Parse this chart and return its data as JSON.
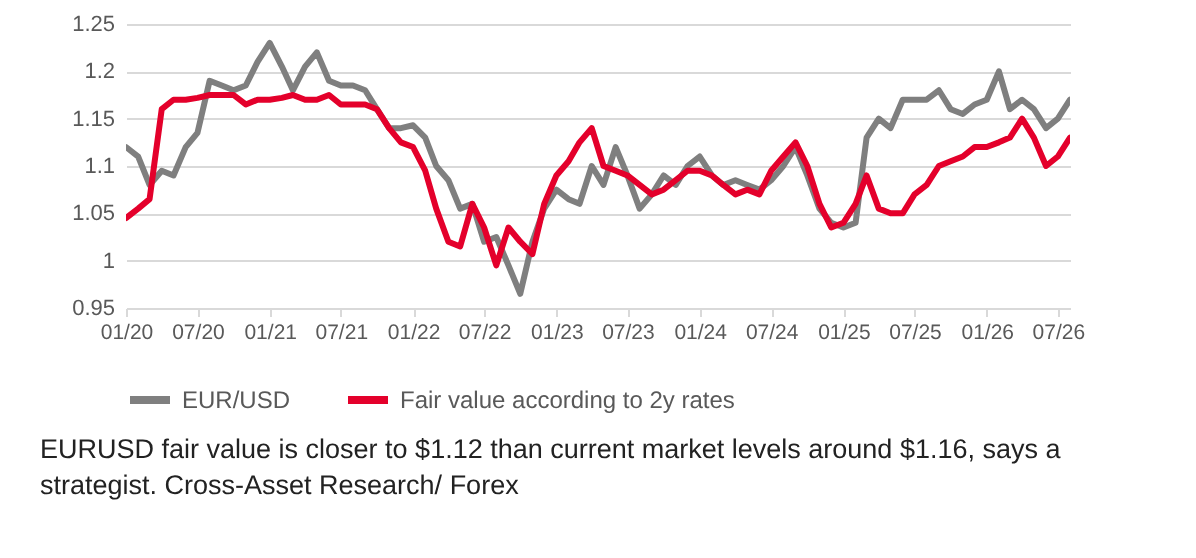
{
  "chart_data": {
    "type": "line",
    "x": [
      "2020-01",
      "2020-02",
      "2020-03",
      "2020-04",
      "2020-05",
      "2020-06",
      "2020-07",
      "2020-08",
      "2020-09",
      "2020-10",
      "2020-11",
      "2020-12",
      "2021-01",
      "2021-02",
      "2021-03",
      "2021-04",
      "2021-05",
      "2021-06",
      "2021-07",
      "2021-08",
      "2021-09",
      "2021-10",
      "2021-11",
      "2021-12",
      "2022-01",
      "2022-02",
      "2022-03",
      "2022-04",
      "2022-05",
      "2022-06",
      "2022-07",
      "2022-08",
      "2022-09",
      "2022-10",
      "2022-11",
      "2022-12",
      "2023-01",
      "2023-02",
      "2023-03",
      "2023-04",
      "2023-05",
      "2023-06",
      "2023-07",
      "2023-08",
      "2023-09",
      "2023-10",
      "2023-11",
      "2023-12",
      "2024-01",
      "2024-02",
      "2024-03",
      "2024-04",
      "2024-05",
      "2024-06",
      "2024-07",
      "2024-08",
      "2024-09",
      "2024-10",
      "2024-11",
      "2024-12",
      "2025-01",
      "2025-02",
      "2025-03",
      "2025-04",
      "2025-05",
      "2025-06",
      "2025-07",
      "2025-08",
      "2025-09",
      "2025-10",
      "2025-11",
      "2025-12",
      "2026-01",
      "2026-02",
      "2026-03",
      "2026-04",
      "2026-05",
      "2026-06",
      "2026-07",
      "2026-08"
    ],
    "series": [
      {
        "name": "EUR/USD",
        "color": "#7f7f7f",
        "values": [
          1.12,
          1.11,
          1.08,
          1.095,
          1.09,
          1.12,
          1.135,
          1.19,
          1.185,
          1.18,
          1.185,
          1.21,
          1.23,
          1.205,
          1.18,
          1.205,
          1.22,
          1.19,
          1.185,
          1.185,
          1.18,
          1.16,
          1.14,
          1.14,
          1.143,
          1.13,
          1.1,
          1.085,
          1.055,
          1.06,
          1.02,
          1.025,
          0.995,
          0.965,
          1.02,
          1.055,
          1.075,
          1.065,
          1.06,
          1.1,
          1.08,
          1.12,
          1.09,
          1.055,
          1.07,
          1.09,
          1.08,
          1.1,
          1.11,
          1.09,
          1.08,
          1.085,
          1.08,
          1.075,
          1.085,
          1.1,
          1.12,
          1.09,
          1.055,
          1.04,
          1.035,
          1.04,
          1.13,
          1.15,
          1.14,
          1.17,
          1.17,
          1.17,
          1.18,
          1.16,
          1.155,
          1.165,
          1.17,
          1.2,
          1.16,
          1.17,
          1.16,
          1.14,
          1.15,
          1.17
        ]
      },
      {
        "name": "Fair value according to 2y rates",
        "color": "#e4002b",
        "values": [
          1.045,
          1.055,
          1.065,
          1.16,
          1.17,
          1.17,
          1.172,
          1.175,
          1.175,
          1.175,
          1.165,
          1.17,
          1.17,
          1.172,
          1.175,
          1.17,
          1.17,
          1.175,
          1.165,
          1.165,
          1.165,
          1.16,
          1.14,
          1.125,
          1.12,
          1.095,
          1.055,
          1.02,
          1.015,
          1.06,
          1.035,
          0.995,
          1.035,
          1.02,
          1.007,
          1.06,
          1.09,
          1.105,
          1.125,
          1.14,
          1.1,
          1.095,
          1.09,
          1.08,
          1.07,
          1.075,
          1.085,
          1.095,
          1.095,
          1.09,
          1.08,
          1.07,
          1.075,
          1.07,
          1.095,
          1.11,
          1.125,
          1.1,
          1.06,
          1.035,
          1.04,
          1.06,
          1.09,
          1.055,
          1.05,
          1.05,
          1.07,
          1.08,
          1.1,
          1.105,
          1.11,
          1.12,
          1.12,
          1.125,
          1.13,
          1.15,
          1.13,
          1.1,
          1.11,
          1.13
        ]
      }
    ],
    "xlim": [
      "2020-01",
      "2026-08"
    ],
    "xticks": [
      {
        "value": "2020-01",
        "label": "01/20"
      },
      {
        "value": "2020-07",
        "label": "07/20"
      },
      {
        "value": "2021-01",
        "label": "01/21"
      },
      {
        "value": "2021-07",
        "label": "07/21"
      },
      {
        "value": "2022-01",
        "label": "01/22"
      },
      {
        "value": "2022-07",
        "label": "07/22"
      },
      {
        "value": "2023-01",
        "label": "01/23"
      },
      {
        "value": "2023-07",
        "label": "07/23"
      },
      {
        "value": "2024-01",
        "label": "01/24"
      },
      {
        "value": "2024-07",
        "label": "07/24"
      },
      {
        "value": "2025-01",
        "label": "01/25"
      },
      {
        "value": "2025-07",
        "label": "07/25"
      },
      {
        "value": "2026-01",
        "label": "01/26"
      },
      {
        "value": "2026-07",
        "label": "07/26"
      }
    ],
    "ylim": [
      0.95,
      1.25
    ],
    "yticks": [
      0.95,
      1,
      1.05,
      1.1,
      1.15,
      1.2,
      1.25
    ],
    "grid": "y",
    "legend": "bottom",
    "line_style": "solid",
    "marker": "none",
    "annotations": [
      "EURUSD fair value is closer to $1.12 than current market levels around $1.16, says a strategist. Cross-Asset Research/ Forex"
    ]
  }
}
